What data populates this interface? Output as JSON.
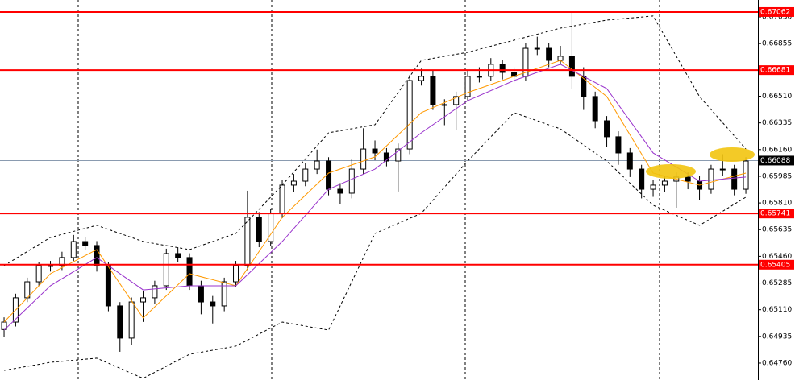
{
  "chart_data": {
    "type": "candlestick",
    "xlim": [
      -0.35,
      65.04
    ],
    "ylim": [
      0.64649,
      0.67141
    ],
    "yticks": [
      {
        "value": 0.6703,
        "label": "0.67030"
      },
      0.66855,
      {
        "value": 0.6651,
        "label": "0.66510"
      },
      0.66335,
      {
        "value": 0.6616,
        "label": "0.66160"
      },
      0.65985,
      {
        "value": 0.6581,
        "label": "0.65810"
      },
      0.65635,
      {
        "value": 0.6546,
        "label": "0.65460"
      },
      0.65285,
      {
        "value": 0.6511,
        "label": "0.65110"
      },
      0.64935,
      {
        "value": 0.6476,
        "label": "0.64760"
      }
    ],
    "levels": [
      0.67062,
      0.66681,
      0.65741,
      0.65405
    ],
    "level_color": "#ff0000",
    "current_price": 0.66088,
    "current_color": "#8a9bb0",
    "up_color": "#ffffff",
    "down_color": "#000000",
    "open": [
      0.6498,
      0.65029,
      0.65188,
      0.65293,
      0.65399,
      0.65399,
      0.65452,
      0.65557,
      0.65531,
      0.65399,
      0.65135,
      0.64924,
      0.65161,
      0.65188,
      0.65267,
      0.65478,
      0.65452,
      0.65267,
      0.65161,
      0.65135,
      0.65293,
      0.65399,
      0.65716,
      0.65557,
      0.65742,
      0.65927,
      0.65953,
      0.66032,
      0.66085,
      0.659,
      0.65874,
      0.66032,
      0.66164,
      0.66138,
      0.66085,
      0.66164,
      0.66613,
      0.6664,
      0.66455,
      0.66455,
      0.66508,
      0.6664,
      0.6664,
      0.66719,
      0.66666,
      0.6664,
      0.66824,
      0.66824,
      0.66745,
      0.66772,
      0.6664,
      0.66508,
      0.66349,
      0.66244,
      0.66138,
      0.66032,
      0.659,
      0.65927,
      0.65953,
      0.6598,
      0.65953,
      0.659,
      0.66032,
      0.66032,
      0.659
    ],
    "high": [
      0.6506,
      0.65215,
      0.6532,
      0.65425,
      0.6543,
      0.6549,
      0.656,
      0.65585,
      0.6556,
      0.6542,
      0.6516,
      0.6519,
      0.6523,
      0.653,
      0.6551,
      0.6552,
      0.6548,
      0.653,
      0.652,
      0.6532,
      0.6543,
      0.6589,
      0.6575,
      0.6577,
      0.6596,
      0.66,
      0.6607,
      0.6616,
      0.6611,
      0.6594,
      0.661,
      0.663,
      0.6622,
      0.6617,
      0.662,
      0.6665,
      0.6669,
      0.6668,
      0.6649,
      0.6654,
      0.6668,
      0.667,
      0.6676,
      0.6675,
      0.667,
      0.6686,
      0.669,
      0.6686,
      0.6684,
      0.67062,
      0.667,
      0.6654,
      0.6638,
      0.6628,
      0.6617,
      0.6606,
      0.6596,
      0.6599,
      0.6601,
      0.6601,
      0.6599,
      0.6606,
      0.6613,
      0.6606,
      0.6611
    ],
    "low": [
      0.6493,
      0.65,
      0.6516,
      0.65265,
      0.6536,
      0.6537,
      0.6543,
      0.655,
      0.6536,
      0.651,
      0.64834,
      0.6488,
      0.6503,
      0.6515,
      0.6524,
      0.6542,
      0.6524,
      0.6508,
      0.6502,
      0.651,
      0.6526,
      0.6537,
      0.6552,
      0.6553,
      0.6571,
      0.6588,
      0.6592,
      0.66,
      0.6586,
      0.658,
      0.6584,
      0.66,
      0.6609,
      0.6605,
      0.65885,
      0.6613,
      0.6658,
      0.6642,
      0.6632,
      0.6629,
      0.6648,
      0.666,
      0.6661,
      0.6662,
      0.666,
      0.6661,
      0.6678,
      0.667,
      0.6672,
      0.6656,
      0.6642,
      0.663,
      0.6618,
      0.6606,
      0.6598,
      0.6584,
      0.6585,
      0.6588,
      0.65779,
      0.659,
      0.6583,
      0.6587,
      0.6599,
      0.6586,
      0.6587
    ],
    "close": [
      0.65029,
      0.65188,
      0.65293,
      0.65399,
      0.65399,
      0.65452,
      0.65557,
      0.65531,
      0.65399,
      0.65135,
      0.64924,
      0.65161,
      0.65188,
      0.65267,
      0.65478,
      0.65452,
      0.65267,
      0.65161,
      0.65135,
      0.65293,
      0.65399,
      0.65716,
      0.65557,
      0.65742,
      0.65927,
      0.65953,
      0.66032,
      0.66085,
      0.659,
      0.65874,
      0.66032,
      0.66164,
      0.66138,
      0.66085,
      0.66164,
      0.66613,
      0.6664,
      0.66455,
      0.66455,
      0.66508,
      0.6664,
      0.6664,
      0.66719,
      0.66666,
      0.6664,
      0.66824,
      0.66824,
      0.66745,
      0.66772,
      0.6664,
      0.66508,
      0.66349,
      0.66244,
      0.66138,
      0.66032,
      0.659,
      0.65927,
      0.65953,
      0.6598,
      0.65953,
      0.659,
      0.66032,
      0.66032,
      0.659,
      0.66085
    ],
    "series": [
      {
        "color": "#ff9900",
        "dash": false,
        "x": [
          0,
          4,
          8,
          12,
          16,
          20,
          24,
          28,
          32,
          36,
          40,
          44,
          48,
          52,
          56,
          60,
          64
        ],
        "values": [
          0.65029,
          0.65346,
          0.65504,
          0.65056,
          0.65346,
          0.65267,
          0.65716,
          0.66006,
          0.66112,
          0.66402,
          0.66534,
          0.6664,
          0.66745,
          0.66508,
          0.66006,
          0.65927,
          0.66006
        ]
      },
      {
        "color": "#9933cc",
        "dash": false,
        "x": [
          0,
          4,
          8,
          12,
          16,
          20,
          24,
          28,
          32,
          36,
          40,
          44,
          48,
          52,
          56,
          60,
          64
        ],
        "values": [
          0.64976,
          0.65267,
          0.65452,
          0.6524,
          0.65267,
          0.65267,
          0.65557,
          0.659,
          0.66032,
          0.6627,
          0.66481,
          0.66613,
          0.66719,
          0.6656,
          0.66138,
          0.65953,
          0.6598
        ]
      },
      {
        "color": "#000000",
        "dash": true,
        "x": [
          0,
          4,
          8,
          12,
          16,
          20,
          24,
          28,
          32,
          36,
          40,
          44,
          48,
          52,
          56,
          60,
          64
        ],
        "values": [
          0.65399,
          0.65584,
          0.65663,
          0.65557,
          0.65504,
          0.6561,
          0.65927,
          0.6627,
          0.66323,
          0.66745,
          0.66798,
          0.66877,
          0.66956,
          0.67009,
          0.67036,
          0.66508,
          0.66164
        ]
      },
      {
        "color": "#000000",
        "dash": true,
        "x": [
          0,
          4,
          8,
          12,
          16,
          20,
          24,
          28,
          32,
          36,
          40,
          44,
          48,
          52,
          56,
          60,
          64
        ],
        "values": [
          0.64712,
          0.64765,
          0.64792,
          0.6466,
          0.64818,
          0.64871,
          0.65029,
          0.64976,
          0.6561,
          0.65742,
          0.66085,
          0.66402,
          0.66296,
          0.66085,
          0.65795,
          0.65663,
          0.65848
        ]
      }
    ]
  }
}
